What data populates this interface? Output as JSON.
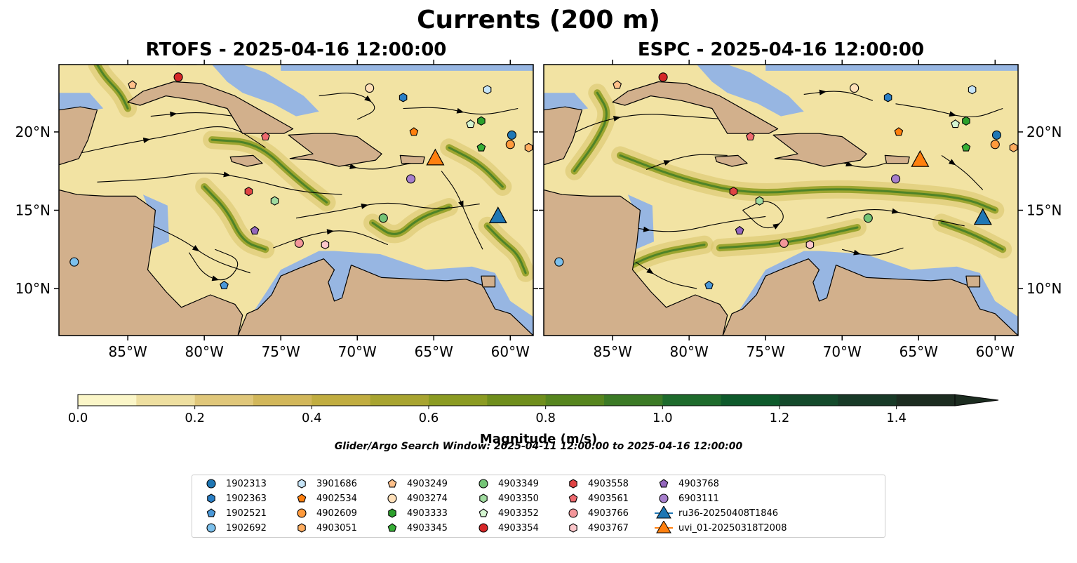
{
  "title": "Currents (200 m)",
  "panels": [
    {
      "id": "rtofs",
      "title": "RTOFS - 2025-04-16 12:00:00",
      "glider_blue": [
        60.8,
        14.6
      ],
      "glider_orange": [
        64.9,
        18.3
      ]
    },
    {
      "id": "espc",
      "title": "ESPC - 2025-04-16 12:00:00",
      "glider_blue": [
        60.8,
        14.5
      ],
      "glider_orange": [
        64.9,
        18.2
      ]
    }
  ],
  "axes": {
    "lon_ticks": [
      "85°W",
      "80°W",
      "75°W",
      "70°W",
      "65°W",
      "60°W"
    ],
    "lat_ticks": [
      "20°N",
      "15°N",
      "10°N"
    ],
    "lon_range": [
      -89.5,
      -58.5
    ],
    "lat_range": [
      7.0,
      24.3
    ]
  },
  "colors": {
    "ocean": "#f2e3a3",
    "shallow": "#97b6e2",
    "land": "#d2b08c",
    "jet": "#8a9a1c",
    "glider_blue": "#1f77b4",
    "glider_orange": "#ff7f0e"
  },
  "colorbar": {
    "label": "Magnitude (m/s)",
    "ticks": [
      "0.0",
      "0.2",
      "0.4",
      "0.6",
      "0.8",
      "1.0",
      "1.2",
      "1.4"
    ],
    "min": 0.0,
    "max": 1.5,
    "colors": [
      "#fbf6c8",
      "#eedfa0",
      "#e0c77a",
      "#d2b75a",
      "#c1ad40",
      "#a8a430",
      "#8b9b22",
      "#6f8e1c",
      "#56851e",
      "#3b7a25",
      "#1e6b2c",
      "#0e5a2b",
      "#144a2b",
      "#183a27",
      "#1c2c20"
    ]
  },
  "search_window": "Glider/Argo Search Window: 2025-04-11 12:00:00 to 2025-04-16 12:00:00",
  "legend": [
    {
      "label": "1902313",
      "color": "#1f77b4",
      "shape": "circle"
    },
    {
      "label": "1902363",
      "color": "#2a7fc6",
      "shape": "hexagon"
    },
    {
      "label": "1902521",
      "color": "#4a98d8",
      "shape": "pentagon"
    },
    {
      "label": "1902692",
      "color": "#7cc0ec",
      "shape": "circle"
    },
    {
      "label": "3901686",
      "color": "#c6e4f7",
      "shape": "hexagon"
    },
    {
      "label": "4902534",
      "color": "#ff7f0e",
      "shape": "pentagon"
    },
    {
      "label": "4902609",
      "color": "#ff9a3c",
      "shape": "circle"
    },
    {
      "label": "4903051",
      "color": "#ffad60",
      "shape": "hexagon"
    },
    {
      "label": "4903249",
      "color": "#ffc08a",
      "shape": "pentagon"
    },
    {
      "label": "4903274",
      "color": "#ffdfb8",
      "shape": "circle"
    },
    {
      "label": "4903333",
      "color": "#2ca02c",
      "shape": "hexagon"
    },
    {
      "label": "4903345",
      "color": "#36ae36",
      "shape": "pentagon"
    },
    {
      "label": "4903349",
      "color": "#74c476",
      "shape": "circle"
    },
    {
      "label": "4903350",
      "color": "#a1dca0",
      "shape": "hexagon"
    },
    {
      "label": "4903352",
      "color": "#d4f5d0",
      "shape": "pentagon"
    },
    {
      "label": "4903354",
      "color": "#d62728",
      "shape": "circle"
    },
    {
      "label": "4903558",
      "color": "#e04444",
      "shape": "hexagon"
    },
    {
      "label": "4903561",
      "color": "#ee6a6f",
      "shape": "pentagon"
    },
    {
      "label": "4903766",
      "color": "#f4969a",
      "shape": "circle"
    },
    {
      "label": "4903767",
      "color": "#fcc6ca",
      "shape": "hexagon"
    },
    {
      "label": "4903768",
      "color": "#9467bd",
      "shape": "pentagon"
    },
    {
      "label": "6903111",
      "color": "#a77fcc",
      "shape": "circle"
    },
    {
      "label": "ru36-20250408T1846",
      "color": "#1f77b4",
      "shape": "triangle-line"
    },
    {
      "label": "uvi_01-20250318T2008",
      "color": "#ff7f0e",
      "shape": "triangle-line"
    }
  ],
  "floats": [
    {
      "id": "1902313",
      "lon": -59.9,
      "lat": 19.8
    },
    {
      "id": "1902363",
      "lon": -67.0,
      "lat": 22.2
    },
    {
      "id": "1902521",
      "lon": -78.7,
      "lat": 10.2
    },
    {
      "id": "1902692",
      "lon": -88.5,
      "lat": 11.7
    },
    {
      "id": "3901686",
      "lon": -61.5,
      "lat": 22.7
    },
    {
      "id": "4902534",
      "lon": -66.3,
      "lat": 20.0
    },
    {
      "id": "4902609",
      "lon": -60.0,
      "lat": 19.2
    },
    {
      "id": "4903051",
      "lon": -58.8,
      "lat": 19.0
    },
    {
      "id": "4903249",
      "lon": -84.7,
      "lat": 23.0
    },
    {
      "id": "4903274",
      "lon": -69.2,
      "lat": 22.8
    },
    {
      "id": "4903333",
      "lon": -61.9,
      "lat": 20.7
    },
    {
      "id": "4903345",
      "lon": -61.9,
      "lat": 19.0
    },
    {
      "id": "4903349",
      "lon": -68.3,
      "lat": 14.5
    },
    {
      "id": "4903350",
      "lon": -75.4,
      "lat": 15.6
    },
    {
      "id": "4903352",
      "lon": -62.6,
      "lat": 20.5
    },
    {
      "id": "4903354",
      "lon": -81.7,
      "lat": 23.5
    },
    {
      "id": "4903558",
      "lon": -77.1,
      "lat": 16.2
    },
    {
      "id": "4903561",
      "lon": -76.0,
      "lat": 19.7
    },
    {
      "id": "4903766",
      "lon": -73.8,
      "lat": 12.9
    },
    {
      "id": "4903767",
      "lon": -72.1,
      "lat": 12.8
    },
    {
      "id": "4903768",
      "lon": -76.7,
      "lat": 13.7
    },
    {
      "id": "6903111",
      "lon": -66.5,
      "lat": 17.0
    }
  ]
}
